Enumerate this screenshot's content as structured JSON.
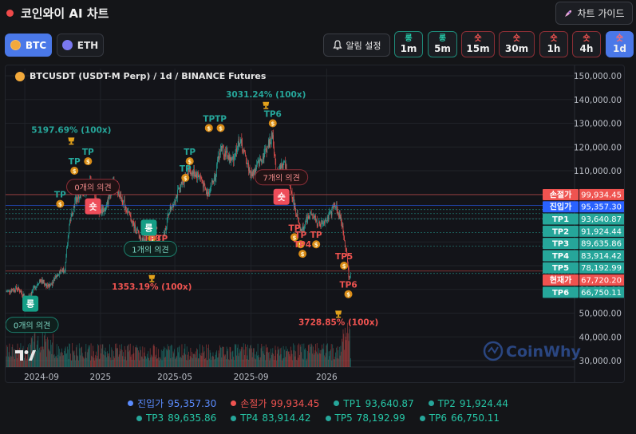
{
  "app": {
    "title": "코인와이 AI 차트",
    "guide_label": "차트 가이드"
  },
  "coins": [
    {
      "label": "BTC",
      "active": true
    },
    {
      "label": "ETH",
      "active": false
    }
  ],
  "alert_label": "알림 설정",
  "timeframes": [
    {
      "signal": "롱",
      "label": "1m",
      "kind": "long"
    },
    {
      "signal": "롱",
      "label": "5m",
      "kind": "long"
    },
    {
      "signal": "숏",
      "label": "15m",
      "kind": "short"
    },
    {
      "signal": "숏",
      "label": "30m",
      "kind": "short"
    },
    {
      "signal": "숏",
      "label": "1h",
      "kind": "short"
    },
    {
      "signal": "숏",
      "label": "4h",
      "kind": "short"
    },
    {
      "signal": "숏",
      "label": "1d",
      "kind": "short",
      "active": true
    }
  ],
  "chart": {
    "symbol_line": "BTCUSDT (USDT-M Perp) / 1d / BINANCE Futures",
    "watermark": "CoinWhy",
    "colors": {
      "up": "#26a69a",
      "down": "#ef5350",
      "entry": "#2962ff",
      "stop": "#ef5350",
      "tp": "#26a69a",
      "current": "#ef5350"
    }
  },
  "chart_data": {
    "type": "candlestick",
    "x_tick_labels": [
      "2024-09",
      "2025",
      "2025-05",
      "2025-09",
      "2026"
    ],
    "y_tick_labels": [
      "150,000.00",
      "140,000.00",
      "130,000.00",
      "120,000.00",
      "110,000.00",
      "100,000.00",
      "90,000.00",
      "80,000.00",
      "70,000.00",
      "60,000.00",
      "50,000.00",
      "40,000.00",
      "30,000.00"
    ],
    "ylim": [
      25000,
      153000
    ],
    "close_path": [
      [
        "2024-08-01",
        59000
      ],
      [
        "2024-08-20",
        60500
      ],
      [
        "2024-09-05",
        56000
      ],
      [
        "2024-09-25",
        64000
      ],
      [
        "2024-10-10",
        61000
      ],
      [
        "2024-10-25",
        67000
      ],
      [
        "2024-11-05",
        69000
      ],
      [
        "2024-11-12",
        88000
      ],
      [
        "2024-11-22",
        98000
      ],
      [
        "2024-12-05",
        100500
      ],
      [
        "2024-12-17",
        106000
      ],
      [
        "2024-12-30",
        93000
      ],
      [
        "2025-01-10",
        94000
      ],
      [
        "2025-01-21",
        106000
      ],
      [
        "2025-02-05",
        98000
      ],
      [
        "2025-02-25",
        86000
      ],
      [
        "2025-03-10",
        80000
      ],
      [
        "2025-03-25",
        87000
      ],
      [
        "2025-04-08",
        76500
      ],
      [
        "2025-04-22",
        93000
      ],
      [
        "2025-05-10",
        103000
      ],
      [
        "2025-05-22",
        110000
      ],
      [
        "2025-06-10",
        108000
      ],
      [
        "2025-06-22",
        100000
      ],
      [
        "2025-07-05",
        108000
      ],
      [
        "2025-07-14",
        120000
      ],
      [
        "2025-08-01",
        114000
      ],
      [
        "2025-08-14",
        123000
      ],
      [
        "2025-09-01",
        108000
      ],
      [
        "2025-09-20",
        116000
      ],
      [
        "2025-10-06",
        125000
      ],
      [
        "2025-10-11",
        110000
      ],
      [
        "2025-10-25",
        113000
      ],
      [
        "2025-11-05",
        101000
      ],
      [
        "2025-11-20",
        84000
      ],
      [
        "2025-12-05",
        92000
      ],
      [
        "2025-12-20",
        87000
      ],
      [
        "2026-01-05",
        91000
      ],
      [
        "2026-01-15",
        96000
      ],
      [
        "2026-01-25",
        88000
      ],
      [
        "2026-02-02",
        76000
      ],
      [
        "2026-02-06",
        64000
      ],
      [
        "2026-02-09",
        67720
      ]
    ],
    "price_levels": [
      {
        "tag": "손절가",
        "value": "99,934.45",
        "y": 99934.45,
        "kind": "stop"
      },
      {
        "tag": "진입가",
        "value": "95,357.30",
        "y": 95357.3,
        "kind": "entry"
      },
      {
        "tag": "TP1",
        "value": "93,640.87",
        "y": 93640.87,
        "kind": "tp"
      },
      {
        "tag": "TP2",
        "value": "91,924.44",
        "y": 91924.44,
        "kind": "tp"
      },
      {
        "tag": "TP3",
        "value": "89,635.86",
        "y": 89635.86,
        "kind": "tp"
      },
      {
        "tag": "TP4",
        "value": "83,914.42",
        "y": 83914.42,
        "kind": "tp"
      },
      {
        "tag": "TP5",
        "value": "78,192.99",
        "y": 78192.99,
        "kind": "tp"
      },
      {
        "tag": "현재가",
        "value": "67,720.20",
        "y": 67720.2,
        "kind": "current"
      },
      {
        "tag": "TP6",
        "value": "66,750.11",
        "y": 66750.11,
        "kind": "tp"
      }
    ],
    "signals": [
      {
        "type": "롱",
        "date": "2024-09-10",
        "price": 54000,
        "opinion": "0개의 의견"
      },
      {
        "type": "숏",
        "date": "2024-12-20",
        "price": 95000,
        "opinion": "0개의 의견"
      },
      {
        "type": "롱",
        "date": "2025-03-20",
        "price": 86000,
        "opinion": "1개의 의견"
      },
      {
        "type": "숏",
        "date": "2025-10-20",
        "price": 99000,
        "opinion": "7개의 의견"
      }
    ],
    "tp_marks": [
      {
        "label": "TP",
        "date": "2024-10-28",
        "price": 96000,
        "color": "up"
      },
      {
        "label": "TP",
        "date": "2024-11-20",
        "price": 110000,
        "color": "up"
      },
      {
        "label": "TP",
        "date": "2024-12-12",
        "price": 114000,
        "color": "up"
      },
      {
        "label": "TP",
        "date": "2025-03-25",
        "price": 81500,
        "color": "down"
      },
      {
        "label": "TP3",
        "date": "2025-03-26",
        "price": 77500,
        "color": "down"
      },
      {
        "label": "TP",
        "date": "2025-04-10",
        "price": 77500,
        "color": "down"
      },
      {
        "label": "TP",
        "date": "2025-05-18",
        "price": 107000,
        "color": "up"
      },
      {
        "label": "TP",
        "date": "2025-05-25",
        "price": 114000,
        "color": "up"
      },
      {
        "label": "TP",
        "date": "2025-06-25",
        "price": 128000,
        "color": "up"
      },
      {
        "label": "TP",
        "date": "2025-07-14",
        "price": 128000,
        "color": "up"
      },
      {
        "label": "TP6",
        "date": "2025-10-06",
        "price": 130000,
        "color": "up"
      },
      {
        "label": "TP",
        "date": "2025-11-10",
        "price": 82000,
        "color": "down"
      },
      {
        "label": "TP",
        "date": "2025-11-20",
        "price": 79000,
        "color": "down"
      },
      {
        "label": "TP4",
        "date": "2025-11-23",
        "price": 75000,
        "color": "down"
      },
      {
        "label": "TP",
        "date": "2025-12-15",
        "price": 79000,
        "color": "down"
      },
      {
        "label": "TP5",
        "date": "2026-01-29",
        "price": 70000,
        "color": "down"
      },
      {
        "label": "TP6",
        "date": "2026-02-05",
        "price": 58000,
        "color": "down"
      }
    ],
    "pnl_labels": [
      {
        "text": "5197.69% (100x)",
        "date": "2024-11-15",
        "price": 126000,
        "color": "up"
      },
      {
        "text": "1353.19% (100x)",
        "date": "2025-03-25",
        "price": 60000,
        "color": "down"
      },
      {
        "text": "3031.24% (100x)",
        "date": "2025-09-25",
        "price": 141000,
        "color": "up"
      },
      {
        "text": "3728.85% (100x)",
        "date": "2026-01-20",
        "price": 45000,
        "color": "down"
      }
    ]
  },
  "legend": {
    "row1": [
      {
        "label": "진입가",
        "value": "95,357.30",
        "dot": "#5b8cff",
        "label_color": "#5b8cff",
        "value_color": "#5b8cff"
      },
      {
        "label": "손절가",
        "value": "99,934.45",
        "dot": "#ef5350",
        "label_color": "#ef5350",
        "value_color": "#ef5350"
      },
      {
        "label": "TP1",
        "value": "93,640.87",
        "dot": "#26a69a",
        "label_color": "#26c6a6",
        "value_color": "#26c6a6"
      },
      {
        "label": "TP2",
        "value": "91,924.44",
        "dot": "#26a69a",
        "label_color": "#26c6a6",
        "value_color": "#26c6a6"
      }
    ],
    "row2": [
      {
        "label": "TP3",
        "value": "89,635.86",
        "dot": "#26a69a",
        "label_color": "#26c6a6",
        "value_color": "#26c6a6"
      },
      {
        "label": "TP4",
        "value": "83,914.42",
        "dot": "#26a69a",
        "label_color": "#26c6a6",
        "value_color": "#26c6a6"
      },
      {
        "label": "TP5",
        "value": "78,192.99",
        "dot": "#26a69a",
        "label_color": "#26c6a6",
        "value_color": "#26c6a6"
      },
      {
        "label": "TP6",
        "value": "66,750.11",
        "dot": "#26a69a",
        "label_color": "#26c6a6",
        "value_color": "#26c6a6"
      }
    ]
  }
}
